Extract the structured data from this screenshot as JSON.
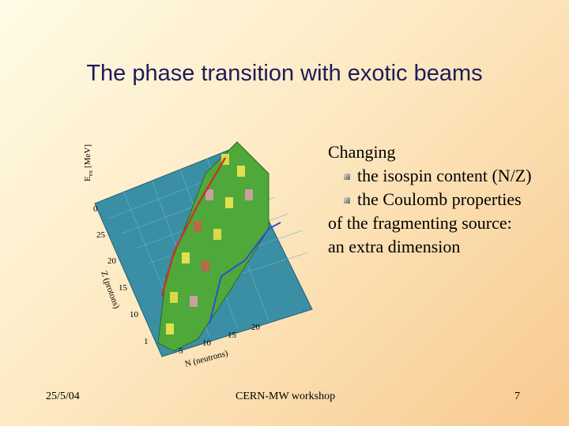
{
  "header": {
    "title": "The phase transition with exotic beams"
  },
  "body": {
    "intro": "Changing",
    "bullets": [
      "the isospin content (N/Z)",
      "the Coulomb properties"
    ],
    "closing": [
      "of the fragmenting source:",
      "an extra dimension"
    ]
  },
  "figure": {
    "energy_axis": "E",
    "energy_axis_sub": "ex",
    "energy_axis_unit": "[MeV]",
    "z_axis": "Z (protons)",
    "n_axis": "N (neutrons)",
    "z_ticks": [
      "0",
      "25",
      "20",
      "15",
      "10"
    ],
    "n_ticks": [
      "1",
      "5",
      "10",
      "15",
      "20"
    ]
  },
  "footer": {
    "date": "25/5/04",
    "center": "CERN-MW workshop",
    "page": "7"
  }
}
